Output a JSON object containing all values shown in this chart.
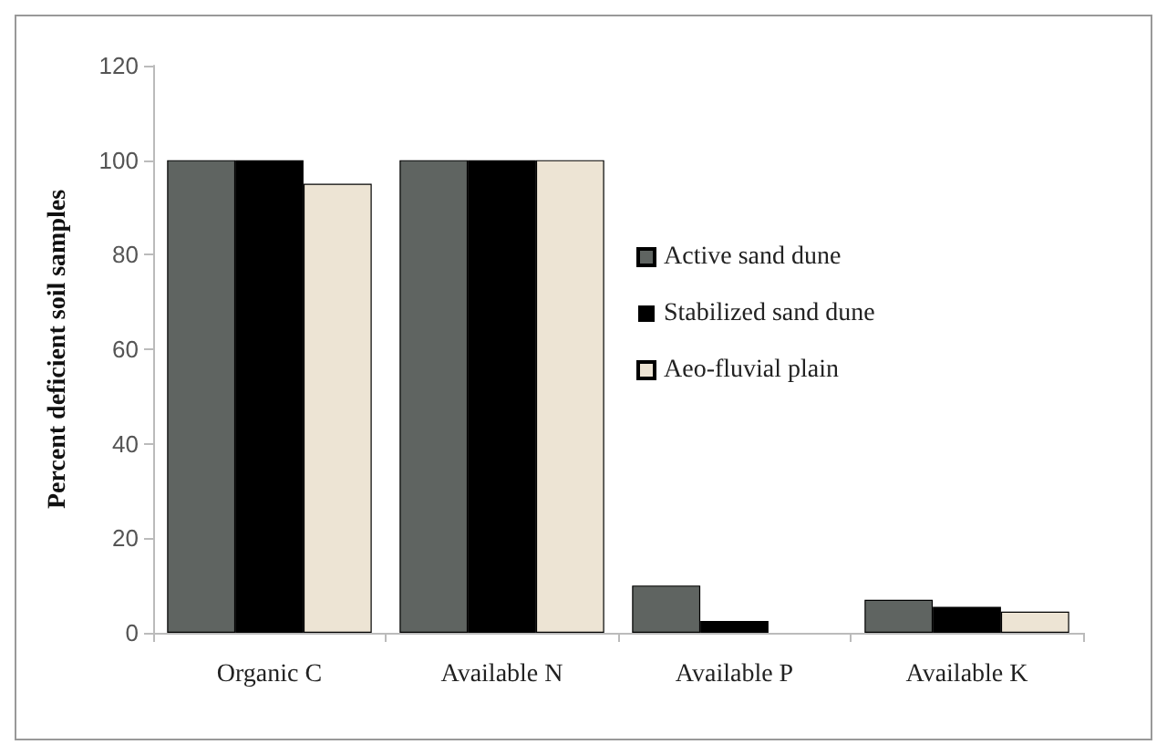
{
  "chart_data": {
    "type": "bar",
    "ylabel": "Percent deficient soil samples",
    "categories": [
      "Organic C",
      "Available N",
      "Available P",
      "Available K"
    ],
    "series": [
      {
        "name": "Active sand dune",
        "color": "#5f6461",
        "values": [
          100,
          100,
          10,
          7
        ]
      },
      {
        "name": "Stabilized sand dune",
        "color": "#000000",
        "values": [
          100,
          100,
          2.5,
          5.5
        ]
      },
      {
        "name": "Aeo-fluvial plain",
        "color": "#ede4d4",
        "values": [
          95,
          100,
          null,
          4.5
        ]
      }
    ],
    "ylim": [
      0,
      120
    ],
    "yticks": [
      0,
      20,
      40,
      60,
      80,
      100,
      120
    ],
    "grid": false,
    "legend": "right"
  }
}
